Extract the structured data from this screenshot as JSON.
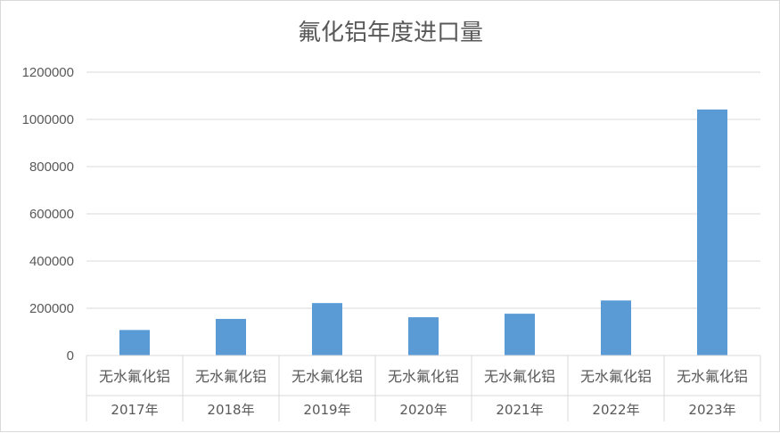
{
  "chart_data": {
    "type": "bar",
    "title": "氟化铝年度进口量",
    "xlabel": "",
    "ylabel": "",
    "categories": [
      {
        "product": "无水氟化铝",
        "year": "2017年"
      },
      {
        "product": "无水氟化铝",
        "year": "2018年"
      },
      {
        "product": "无水氟化铝",
        "year": "2019年"
      },
      {
        "product": "无水氟化铝",
        "year": "2020年"
      },
      {
        "product": "无水氟化铝",
        "year": "2021年"
      },
      {
        "product": "无水氟化铝",
        "year": "2022年"
      },
      {
        "product": "无水氟化铝",
        "year": "2023年"
      }
    ],
    "values": [
      108000,
      155000,
      222000,
      162000,
      177000,
      233000,
      1042000
    ],
    "ylim": [
      0,
      1200000
    ],
    "yticks": [
      "0",
      "200000",
      "400000",
      "600000",
      "800000",
      "1000000",
      "1200000"
    ],
    "grid": true,
    "legend": "none",
    "colors": {
      "bar": "#5b9bd5",
      "grid": "#d9d9d9",
      "text": "#595959"
    }
  }
}
